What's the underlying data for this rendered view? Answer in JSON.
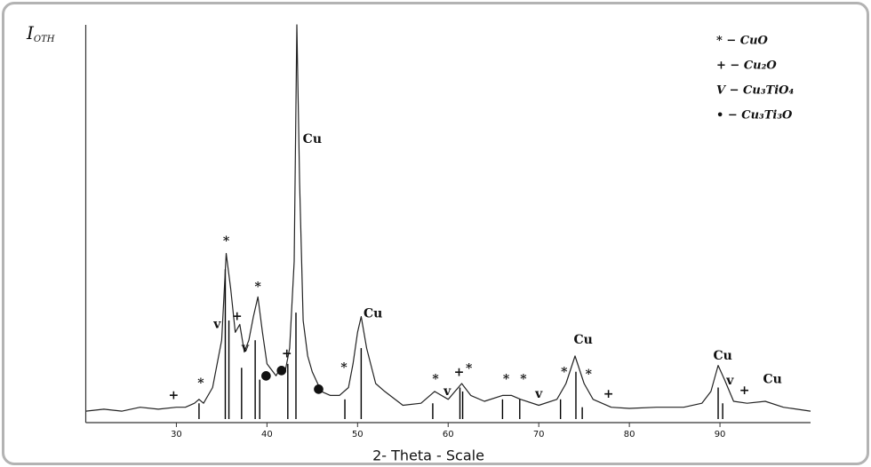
{
  "chart_data": {
    "type": "line",
    "x_label": "2- Theta - Scale",
    "y_label": {
      "main": "I",
      "sub": "OTH"
    },
    "xlim": [
      20,
      100
    ],
    "ylim": [
      0,
      100
    ],
    "xticks": [
      30,
      40,
      50,
      60,
      70,
      80,
      90
    ],
    "color": "#222222",
    "profile": {
      "x": [
        20,
        22,
        24,
        26,
        28,
        30,
        31,
        32,
        32.5,
        33,
        34,
        35,
        35.5,
        36,
        36.5,
        37,
        37.5,
        38,
        38.5,
        39,
        39.5,
        40,
        41,
        41.5,
        42,
        42.5,
        43,
        43.3,
        43.6,
        44,
        44.5,
        45,
        46,
        47,
        48,
        49,
        49.5,
        50,
        50.4,
        51,
        52,
        53,
        55,
        57,
        58.5,
        60,
        61.5,
        62.5,
        64,
        66,
        67,
        68,
        70,
        72,
        73,
        74,
        75,
        76,
        78,
        80,
        83,
        86,
        88,
        89,
        89.8,
        90.5,
        91.5,
        93,
        95,
        97,
        100
      ],
      "values": [
        2,
        2.5,
        2,
        3,
        2.5,
        3,
        3,
        4,
        5,
        4,
        8,
        20,
        42,
        33,
        22,
        24,
        17,
        20,
        26,
        31,
        22,
        14,
        11,
        13,
        12,
        18,
        40,
        100,
        60,
        25,
        16,
        12,
        7,
        6,
        6,
        8,
        14,
        22,
        26,
        18,
        9,
        7,
        3.5,
        4,
        7,
        5,
        9,
        6,
        4.5,
        6,
        6,
        5,
        3.5,
        5,
        9,
        16,
        9,
        5,
        3,
        2.7,
        3,
        3,
        4,
        7,
        13.6,
        10,
        4.5,
        4,
        4.5,
        3,
        2
      ]
    },
    "sticks": {
      "x": [
        32.5,
        35.4,
        35.8,
        37.2,
        38.7,
        39.2,
        42.3,
        43.2,
        48.6,
        50.4,
        58.3,
        61.3,
        61.6,
        66,
        67.9,
        72.4,
        74.1,
        74.8,
        89.8,
        90.3
      ],
      "values": [
        4,
        38,
        25,
        13,
        20,
        10,
        14,
        27,
        5,
        18,
        4,
        8,
        7,
        5,
        5,
        5,
        12,
        3,
        8,
        4
      ]
    },
    "annotations": [
      {
        "text": "Cu",
        "x": 45.0,
        "y": 71
      },
      {
        "text": "*",
        "x": 35.5,
        "y": 45
      },
      {
        "text": "v",
        "x": 34.5,
        "y": 24
      },
      {
        "text": "+",
        "x": 36.7,
        "y": 26
      },
      {
        "text": "v",
        "x": 37.6,
        "y": 18
      },
      {
        "text": "*",
        "x": 39.0,
        "y": 33.5
      },
      {
        "text": "●",
        "x": 39.9,
        "y": 11
      },
      {
        "text": "●",
        "x": 41.6,
        "y": 12.4
      },
      {
        "text": "+",
        "x": 42.2,
        "y": 16.5
      },
      {
        "text": "●",
        "x": 45.7,
        "y": 7.7
      },
      {
        "text": "*",
        "x": 48.5,
        "y": 13
      },
      {
        "text": "Cu",
        "x": 51.7,
        "y": 26.7
      },
      {
        "text": "*",
        "x": 32.7,
        "y": 9
      },
      {
        "text": "+",
        "x": 29.7,
        "y": 6
      },
      {
        "text": "*",
        "x": 58.6,
        "y": 10
      },
      {
        "text": "v",
        "x": 59.9,
        "y": 7
      },
      {
        "text": "+",
        "x": 61.2,
        "y": 11.8
      },
      {
        "text": "*",
        "x": 62.3,
        "y": 12.7
      },
      {
        "text": "*",
        "x": 66.4,
        "y": 10
      },
      {
        "text": "*",
        "x": 68.3,
        "y": 10
      },
      {
        "text": "v",
        "x": 70.0,
        "y": 6.3
      },
      {
        "text": "*",
        "x": 72.8,
        "y": 11.8
      },
      {
        "text": "Cu",
        "x": 74.9,
        "y": 20
      },
      {
        "text": "*",
        "x": 75.5,
        "y": 11.3
      },
      {
        "text": "+",
        "x": 77.7,
        "y": 6.3
      },
      {
        "text": "Cu",
        "x": 90.3,
        "y": 16
      },
      {
        "text": "v",
        "x": 91.1,
        "y": 9.7
      },
      {
        "text": "+",
        "x": 92.7,
        "y": 7.2
      },
      {
        "text": "Cu",
        "x": 95.8,
        "y": 10
      }
    ],
    "legend": [
      "* − CuO",
      "+ − Cu₂O",
      "V − Cu₃TiO₄",
      "• − Cu₃Ti₃O"
    ]
  }
}
